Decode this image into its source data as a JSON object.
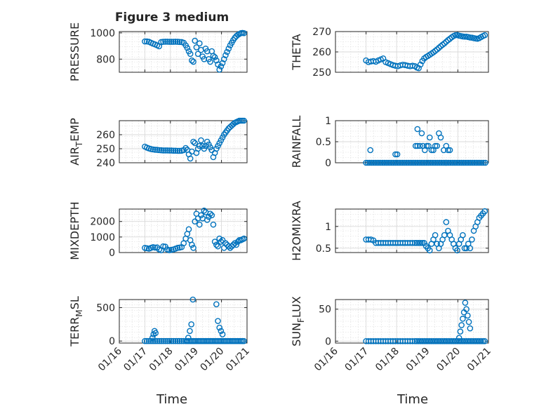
{
  "figure": {
    "title": "Figure 3 medium",
    "x_axis_label": "Time",
    "x_tick_labels": [
      "01/16",
      "01/17",
      "01/18",
      "01/19",
      "01/20",
      "01/21"
    ],
    "colors": {
      "marker": "#0072BD",
      "axes": "#262626",
      "grid": "#d9d9d9",
      "background": "#ffffff"
    }
  },
  "chart_data": [
    {
      "type": "scatter",
      "id": "pressure",
      "ylabel": "PRESSURE",
      "xlim": [
        16,
        21
      ],
      "ylim": [
        700,
        1010
      ],
      "yticks": [
        {
          "v": 800,
          "label": "800"
        },
        {
          "v": 1000,
          "label": "1000"
        }
      ],
      "x": [
        17.0,
        17.08,
        17.16,
        17.24,
        17.32,
        17.4,
        17.48,
        17.56,
        17.64,
        17.72,
        17.8,
        17.88,
        17.96,
        18.04,
        18.12,
        18.2,
        18.28,
        18.36,
        18.44,
        18.52,
        18.6,
        18.66,
        18.72,
        18.78,
        18.84,
        18.9,
        18.96,
        19.02,
        19.08,
        19.14,
        19.2,
        19.26,
        19.32,
        19.38,
        19.44,
        19.5,
        19.56,
        19.62,
        19.68,
        19.74,
        19.8,
        19.86,
        19.92,
        19.98,
        20.04,
        20.1,
        20.16,
        20.22,
        20.28,
        20.34,
        20.4,
        20.46,
        20.52,
        20.58,
        20.64,
        20.7,
        20.76,
        20.82,
        20.88
      ],
      "y": [
        935,
        935,
        932,
        925,
        918,
        912,
        905,
        898,
        930,
        932,
        933,
        933,
        932,
        932,
        932,
        933,
        932,
        931,
        930,
        925,
        905,
        885,
        860,
        840,
        790,
        780,
        940,
        890,
        840,
        920,
        870,
        820,
        800,
        880,
        860,
        800,
        780,
        860,
        825,
        815,
        790,
        760,
        720,
        745,
        770,
        800,
        830,
        855,
        880,
        905,
        925,
        945,
        962,
        975,
        985,
        992,
        998,
        1000,
        998
      ]
    },
    {
      "type": "scatter",
      "id": "theta",
      "ylabel": "THETA",
      "xlim": [
        16,
        21
      ],
      "ylim": [
        250,
        270
      ],
      "yticks": [
        {
          "v": 250,
          "label": "250"
        },
        {
          "v": 260,
          "label": "260"
        },
        {
          "v": 270,
          "label": "270"
        }
      ],
      "x": [
        17.0,
        17.08,
        17.16,
        17.24,
        17.32,
        17.4,
        17.48,
        17.56,
        17.64,
        17.72,
        17.8,
        17.88,
        17.96,
        18.04,
        18.12,
        18.2,
        18.28,
        18.36,
        18.44,
        18.52,
        18.6,
        18.66,
        18.72,
        18.78,
        18.84,
        18.9,
        18.96,
        19.02,
        19.08,
        19.14,
        19.2,
        19.26,
        19.32,
        19.38,
        19.44,
        19.5,
        19.56,
        19.62,
        19.68,
        19.74,
        19.8,
        19.86,
        19.92,
        19.98,
        20.04,
        20.1,
        20.16,
        20.22,
        20.28,
        20.34,
        20.4,
        20.46,
        20.52,
        20.58,
        20.64,
        20.7,
        20.76,
        20.82,
        20.88
      ],
      "y": [
        255.8,
        255,
        255.3,
        255.5,
        255.2,
        255.8,
        256.3,
        256.8,
        255,
        254.5,
        254,
        253.5,
        253.2,
        253,
        253.4,
        253.7,
        253.5,
        253.2,
        253,
        253.2,
        253,
        252.3,
        252,
        253.8,
        255.5,
        256.8,
        257.5,
        258,
        258.6,
        259.2,
        259.8,
        260.5,
        261.2,
        262,
        262.8,
        263.5,
        264.2,
        265,
        265.8,
        266.5,
        267.2,
        267.8,
        268.2,
        268.3,
        268,
        267.8,
        267.6,
        267.5,
        267.5,
        267.3,
        267.1,
        267,
        266.8,
        266.6,
        266.5,
        266.8,
        267.3,
        267.8,
        268.2
      ]
    },
    {
      "type": "scatter",
      "id": "air_temp",
      "ylabel": "AIR_TEMP",
      "xlim": [
        16,
        21
      ],
      "ylim": [
        240,
        270
      ],
      "yticks": [
        {
          "v": 240,
          "label": "240"
        },
        {
          "v": 250,
          "label": "250"
        },
        {
          "v": 260,
          "label": "260"
        }
      ],
      "x": [
        17.0,
        17.08,
        17.16,
        17.24,
        17.32,
        17.4,
        17.48,
        17.56,
        17.64,
        17.72,
        17.8,
        17.88,
        17.96,
        18.04,
        18.12,
        18.2,
        18.28,
        18.36,
        18.44,
        18.52,
        18.6,
        18.66,
        18.72,
        18.78,
        18.84,
        18.9,
        18.96,
        19.02,
        19.08,
        19.14,
        19.2,
        19.26,
        19.32,
        19.38,
        19.44,
        19.5,
        19.56,
        19.62,
        19.68,
        19.74,
        19.8,
        19.86,
        19.92,
        19.98,
        20.04,
        20.1,
        20.16,
        20.22,
        20.28,
        20.34,
        20.4,
        20.46,
        20.52,
        20.58,
        20.64,
        20.7,
        20.76,
        20.82,
        20.88
      ],
      "y": [
        251.5,
        250.8,
        250.2,
        249.8,
        249.5,
        249.3,
        249.2,
        249,
        248.9,
        248.8,
        248.8,
        248.8,
        248.7,
        248.7,
        248.6,
        248.6,
        248.5,
        248.5,
        248.6,
        249,
        250.5,
        249.2,
        246,
        243,
        248,
        255,
        254,
        247,
        250,
        252,
        256,
        252,
        250,
        252,
        255,
        253,
        251,
        249,
        244,
        247,
        250,
        252,
        254,
        256,
        258,
        260,
        261.5,
        263,
        264.5,
        265.5,
        266.5,
        267.5,
        268.5,
        269,
        269.5,
        270,
        270,
        270,
        270
      ]
    },
    {
      "type": "scatter",
      "id": "rainfall",
      "ylabel": "RAINFALL",
      "xlim": [
        16,
        21
      ],
      "ylim": [
        0,
        1
      ],
      "yticks": [
        {
          "v": 0,
          "label": "0"
        },
        {
          "v": 0.5,
          "label": "0.5"
        },
        {
          "v": 1,
          "label": "1"
        }
      ],
      "x": [
        17.0,
        17.06,
        17.12,
        17.18,
        17.24,
        17.3,
        17.36,
        17.42,
        17.48,
        17.54,
        17.6,
        17.66,
        17.72,
        17.78,
        17.84,
        17.9,
        17.96,
        18.02,
        18.08,
        18.14,
        18.2,
        18.26,
        18.32,
        18.38,
        18.44,
        18.5,
        18.56,
        18.62,
        18.68,
        18.74,
        18.8,
        18.86,
        18.92,
        18.98,
        19.04,
        19.1,
        19.16,
        19.22,
        19.28,
        19.34,
        19.4,
        19.46,
        19.52,
        19.58,
        19.64,
        19.7,
        19.76,
        19.82,
        19.88,
        19.94,
        20.0,
        20.06,
        20.12,
        20.18,
        20.24,
        20.3,
        20.36,
        20.42,
        20.48,
        20.54,
        20.6,
        20.66,
        20.72,
        20.78,
        20.84,
        20.9,
        17.14,
        17.96,
        18.02,
        18.62,
        18.68,
        18.68,
        18.76,
        18.82,
        18.86,
        18.92,
        18.98,
        19.04,
        19.08,
        19.14,
        19.2,
        19.26,
        19.32,
        19.38,
        19.44,
        19.54,
        19.62,
        19.68,
        19.74
      ],
      "y": [
        0,
        0,
        0,
        0,
        0,
        0,
        0,
        0,
        0,
        0,
        0,
        0,
        0,
        0,
        0,
        0,
        0,
        0,
        0,
        0,
        0,
        0,
        0,
        0,
        0,
        0,
        0,
        0,
        0,
        0,
        0,
        0,
        0,
        0,
        0,
        0,
        0,
        0,
        0,
        0,
        0,
        0,
        0,
        0,
        0,
        0,
        0,
        0,
        0,
        0,
        0,
        0,
        0,
        0,
        0,
        0,
        0,
        0,
        0,
        0,
        0,
        0,
        0,
        0,
        0,
        0,
        0.3,
        0.2,
        0.2,
        0.4,
        0.4,
        0.8,
        0.4,
        0.7,
        0.4,
        0.3,
        0.4,
        0.4,
        0.6,
        0.3,
        0.3,
        0.4,
        0.4,
        0.7,
        0.6,
        0.3,
        0.4,
        0.3,
        0.3
      ]
    },
    {
      "type": "scatter",
      "id": "mixdepth",
      "ylabel": "MIXDEPTH",
      "xlim": [
        16,
        21
      ],
      "ylim": [
        0,
        2800
      ],
      "yticks": [
        {
          "v": 0,
          "label": "0"
        },
        {
          "v": 1000,
          "label": "1000"
        },
        {
          "v": 2000,
          "label": "2000"
        }
      ],
      "x": [
        17.0,
        17.08,
        17.16,
        17.24,
        17.32,
        17.4,
        17.48,
        17.56,
        17.64,
        17.72,
        17.8,
        17.88,
        17.96,
        18.04,
        18.12,
        18.2,
        18.28,
        18.36,
        18.44,
        18.52,
        18.6,
        18.66,
        18.72,
        18.78,
        18.84,
        18.9,
        18.96,
        19.02,
        19.08,
        19.14,
        19.2,
        19.26,
        19.32,
        19.38,
        19.44,
        19.5,
        19.56,
        19.62,
        19.68,
        19.74,
        19.8,
        19.86,
        19.92,
        19.98,
        20.04,
        20.1,
        20.16,
        20.22,
        20.28,
        20.34,
        20.4,
        20.46,
        20.52,
        20.58,
        20.64,
        20.7,
        20.76,
        20.82,
        20.88
      ],
      "y": [
        300,
        280,
        250,
        300,
        350,
        320,
        330,
        200,
        150,
        400,
        380,
        200,
        150,
        180,
        200,
        250,
        300,
        320,
        350,
        600,
        900,
        1200,
        1500,
        800,
        500,
        300,
        2000,
        2500,
        2200,
        1800,
        2400,
        2200,
        2700,
        2600,
        2100,
        2300,
        2500,
        2400,
        1800,
        700,
        500,
        400,
        900,
        700,
        800,
        300,
        600,
        500,
        400,
        300,
        400,
        500,
        600,
        500,
        700,
        800,
        800,
        850,
        900
      ]
    },
    {
      "type": "scatter",
      "id": "h2omixra",
      "ylabel": "H2OMIXRA",
      "xlim": [
        16,
        21
      ],
      "ylim": [
        0.4,
        1.4
      ],
      "yticks": [
        {
          "v": 0.5,
          "label": "0.5"
        },
        {
          "v": 1,
          "label": "1"
        }
      ],
      "x": [
        17.0,
        17.08,
        17.16,
        17.24,
        17.32,
        17.4,
        17.48,
        17.56,
        17.64,
        17.72,
        17.8,
        17.88,
        17.96,
        18.04,
        18.12,
        18.2,
        18.28,
        18.36,
        18.44,
        18.52,
        18.6,
        18.66,
        18.72,
        18.78,
        18.84,
        18.9,
        18.96,
        19.02,
        19.08,
        19.14,
        19.2,
        19.26,
        19.32,
        19.38,
        19.44,
        19.5,
        19.56,
        19.62,
        19.68,
        19.74,
        19.8,
        19.86,
        19.92,
        19.98,
        20.04,
        20.1,
        20.16,
        20.22,
        20.28,
        20.34,
        20.4,
        20.46,
        20.52,
        20.58,
        20.64,
        20.7,
        20.76,
        20.82,
        20.88
      ],
      "y": [
        0.7,
        0.7,
        0.7,
        0.68,
        0.62,
        0.62,
        0.62,
        0.62,
        0.62,
        0.62,
        0.62,
        0.62,
        0.62,
        0.62,
        0.62,
        0.62,
        0.62,
        0.62,
        0.62,
        0.62,
        0.62,
        0.62,
        0.62,
        0.62,
        0.62,
        0.62,
        0.55,
        0.5,
        0.45,
        0.6,
        0.7,
        0.8,
        0.6,
        0.5,
        0.6,
        0.7,
        0.8,
        1.1,
        0.9,
        0.8,
        0.7,
        0.6,
        0.5,
        0.45,
        0.6,
        0.7,
        0.8,
        0.5,
        0.5,
        0.6,
        0.5,
        0.7,
        0.9,
        1.0,
        1.1,
        1.2,
        1.25,
        1.3,
        1.35
      ]
    },
    {
      "type": "scatter",
      "id": "terr_msl",
      "ylabel": "TERR_MSL",
      "xlim": [
        16,
        21
      ],
      "ylim": [
        -30,
        620
      ],
      "yticks": [
        {
          "v": 0,
          "label": "0"
        },
        {
          "v": 500,
          "label": "500"
        }
      ],
      "x": [
        17.0,
        17.08,
        17.16,
        17.24,
        17.32,
        17.4,
        17.48,
        17.56,
        17.64,
        17.72,
        17.8,
        17.88,
        17.96,
        18.04,
        18.12,
        18.2,
        18.28,
        18.36,
        18.44,
        18.52,
        18.6,
        18.66,
        18.72,
        18.78,
        18.84,
        18.9,
        18.96,
        19.02,
        19.08,
        19.14,
        19.2,
        19.26,
        19.32,
        19.38,
        19.44,
        19.5,
        19.56,
        19.62,
        19.68,
        19.74,
        19.8,
        19.86,
        19.92,
        19.98,
        20.04,
        20.1,
        20.16,
        20.22,
        20.28,
        20.34,
        20.4,
        20.46,
        20.52,
        20.58,
        20.64,
        20.7,
        20.76,
        20.82,
        20.88,
        17.3,
        17.34,
        17.38,
        17.42,
        18.7,
        18.76,
        18.82,
        18.88,
        19.8,
        19.86,
        19.92,
        19.98,
        20.04
      ],
      "y": [
        0,
        0,
        0,
        0,
        0,
        0,
        0,
        0,
        0,
        0,
        0,
        0,
        0,
        0,
        0,
        0,
        0,
        0,
        0,
        0,
        0,
        0,
        0,
        0,
        0,
        0,
        0,
        0,
        0,
        0,
        0,
        0,
        0,
        0,
        0,
        0,
        0,
        0,
        0,
        0,
        0,
        0,
        0,
        0,
        0,
        0,
        0,
        0,
        0,
        0,
        0,
        0,
        0,
        0,
        0,
        0,
        0,
        0,
        0,
        50,
        100,
        150,
        120,
        50,
        150,
        250,
        620,
        550,
        300,
        200,
        150,
        100
      ]
    },
    {
      "type": "scatter",
      "id": "sun_flux",
      "ylabel": "SUN_FLUX",
      "xlim": [
        16,
        21
      ],
      "ylim": [
        -3,
        65
      ],
      "yticks": [
        {
          "v": 0,
          "label": "0"
        },
        {
          "v": 50,
          "label": "50"
        }
      ],
      "x": [
        17.0,
        17.08,
        17.16,
        17.24,
        17.32,
        17.4,
        17.48,
        17.56,
        17.64,
        17.72,
        17.8,
        17.88,
        17.96,
        18.04,
        18.12,
        18.2,
        18.28,
        18.36,
        18.44,
        18.52,
        18.6,
        18.66,
        18.72,
        18.78,
        18.84,
        18.9,
        18.96,
        19.02,
        19.08,
        19.14,
        19.2,
        19.26,
        19.32,
        19.38,
        19.44,
        19.5,
        19.56,
        19.62,
        19.68,
        19.74,
        19.8,
        19.86,
        19.92,
        19.98,
        20.04,
        20.1,
        20.16,
        20.22,
        20.28,
        20.34,
        20.4,
        20.46,
        20.52,
        20.58,
        20.64,
        20.7,
        20.76,
        20.82,
        20.88,
        20.04,
        20.08,
        20.12,
        20.16,
        20.2,
        20.24,
        20.28,
        20.32,
        20.36,
        20.4
      ],
      "y": [
        0,
        0,
        0,
        0,
        0,
        0,
        0,
        0,
        0,
        0,
        0,
        0,
        0,
        0,
        0,
        0,
        0,
        0,
        0,
        0,
        0,
        0,
        0,
        0,
        0,
        0,
        0,
        0,
        0,
        0,
        0,
        0,
        0,
        0,
        0,
        0,
        0,
        0,
        0,
        0,
        0,
        0,
        0,
        0,
        0,
        0,
        0,
        0,
        0,
        0,
        0,
        0,
        0,
        0,
        0,
        0,
        0,
        0,
        0,
        5,
        15,
        25,
        35,
        45,
        60,
        50,
        40,
        30,
        20
      ]
    }
  ]
}
